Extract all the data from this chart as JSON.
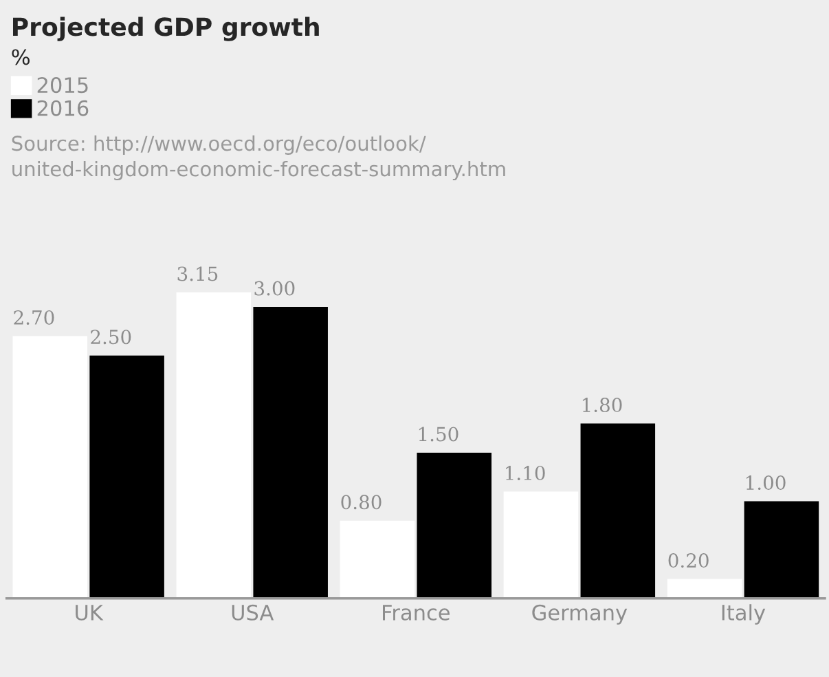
{
  "chart_data": {
    "type": "bar",
    "title": "Projected GDP growth",
    "subtitle": "%",
    "categories": [
      "UK",
      "USA",
      "France",
      "Germany",
      "Italy"
    ],
    "series": [
      {
        "name": "2015",
        "color": "#ffffff",
        "values": [
          2.7,
          3.15,
          0.8,
          1.1,
          0.2
        ],
        "value_labels": [
          "2.70",
          "3.15",
          "0.80",
          "1.10",
          "0.20"
        ]
      },
      {
        "name": "2016",
        "color": "#000000",
        "values": [
          2.5,
          3.0,
          1.5,
          1.8,
          1.0
        ],
        "value_labels": [
          "2.50",
          "3.00",
          "1.50",
          "1.80",
          "1.00"
        ]
      }
    ],
    "legend": "top left",
    "annotations": [
      "Source: http://www.oecd.org/eco/outlook/\nunited-kingdom-economic-forecast-summary.htm"
    ]
  }
}
